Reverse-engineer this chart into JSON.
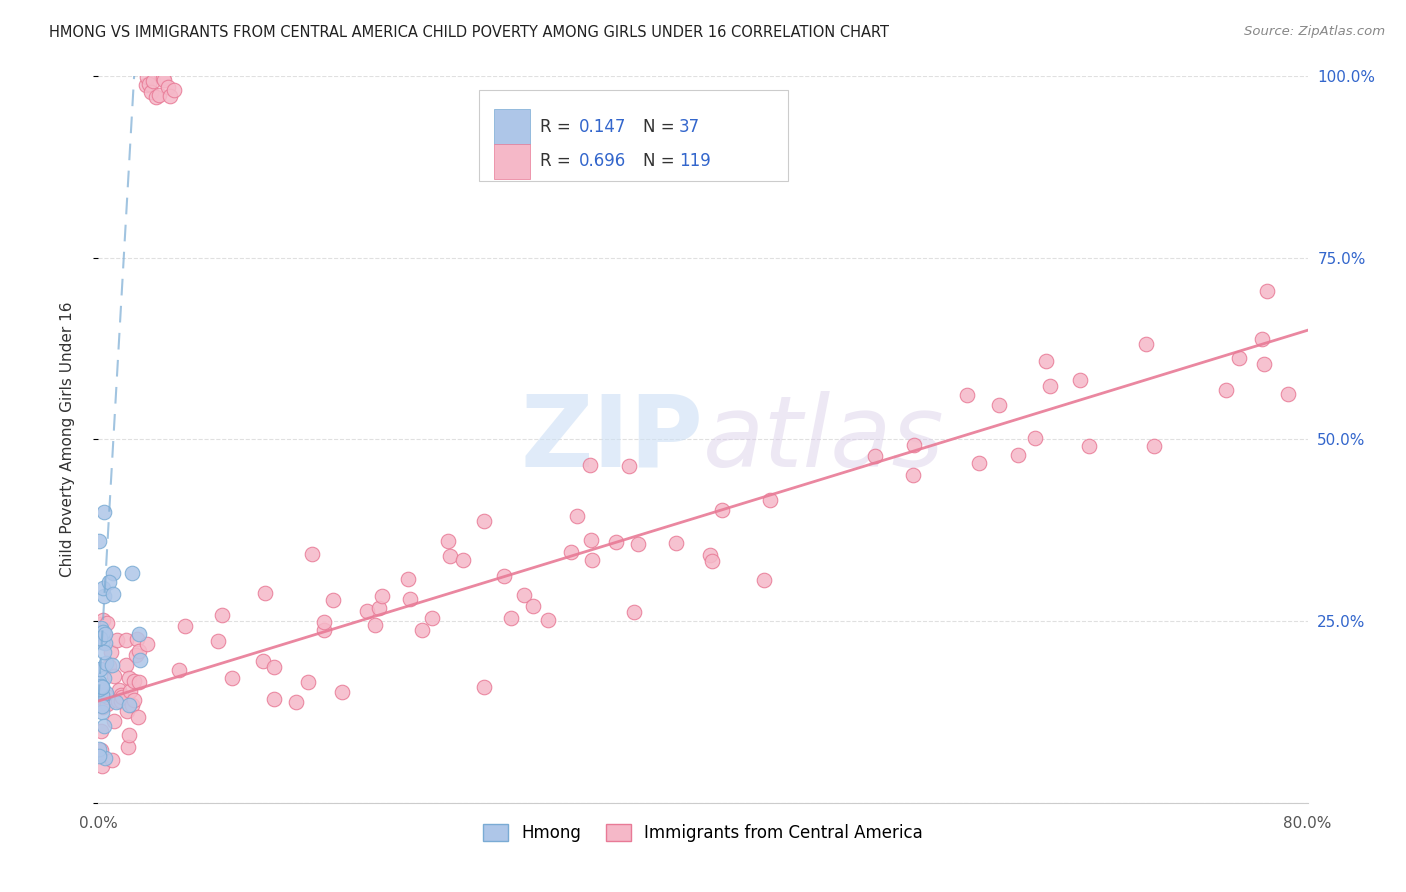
{
  "title": "HMONG VS IMMIGRANTS FROM CENTRAL AMERICA CHILD POVERTY AMONG GIRLS UNDER 16 CORRELATION CHART",
  "source": "Source: ZipAtlas.com",
  "ylabel": "Child Poverty Among Girls Under 16",
  "x_min": 0.0,
  "x_max": 0.8,
  "y_min": 0.0,
  "y_max": 1.0,
  "hmong_color": "#aec6e8",
  "hmong_edge_color": "#7aabd4",
  "hmong_line_color": "#7aabd4",
  "central_america_color": "#f5b8c8",
  "central_america_edge_color": "#e87a96",
  "central_america_line_color": "#e87a96",
  "watermark_zip_color": "#ccdff5",
  "watermark_atlas_color": "#d8cce8",
  "legend_R_color": "#3366cc",
  "legend_N_color": "#3366cc",
  "background_color": "#ffffff",
  "grid_color": "#e0e0e0",
  "right_tick_color": "#3366cc"
}
